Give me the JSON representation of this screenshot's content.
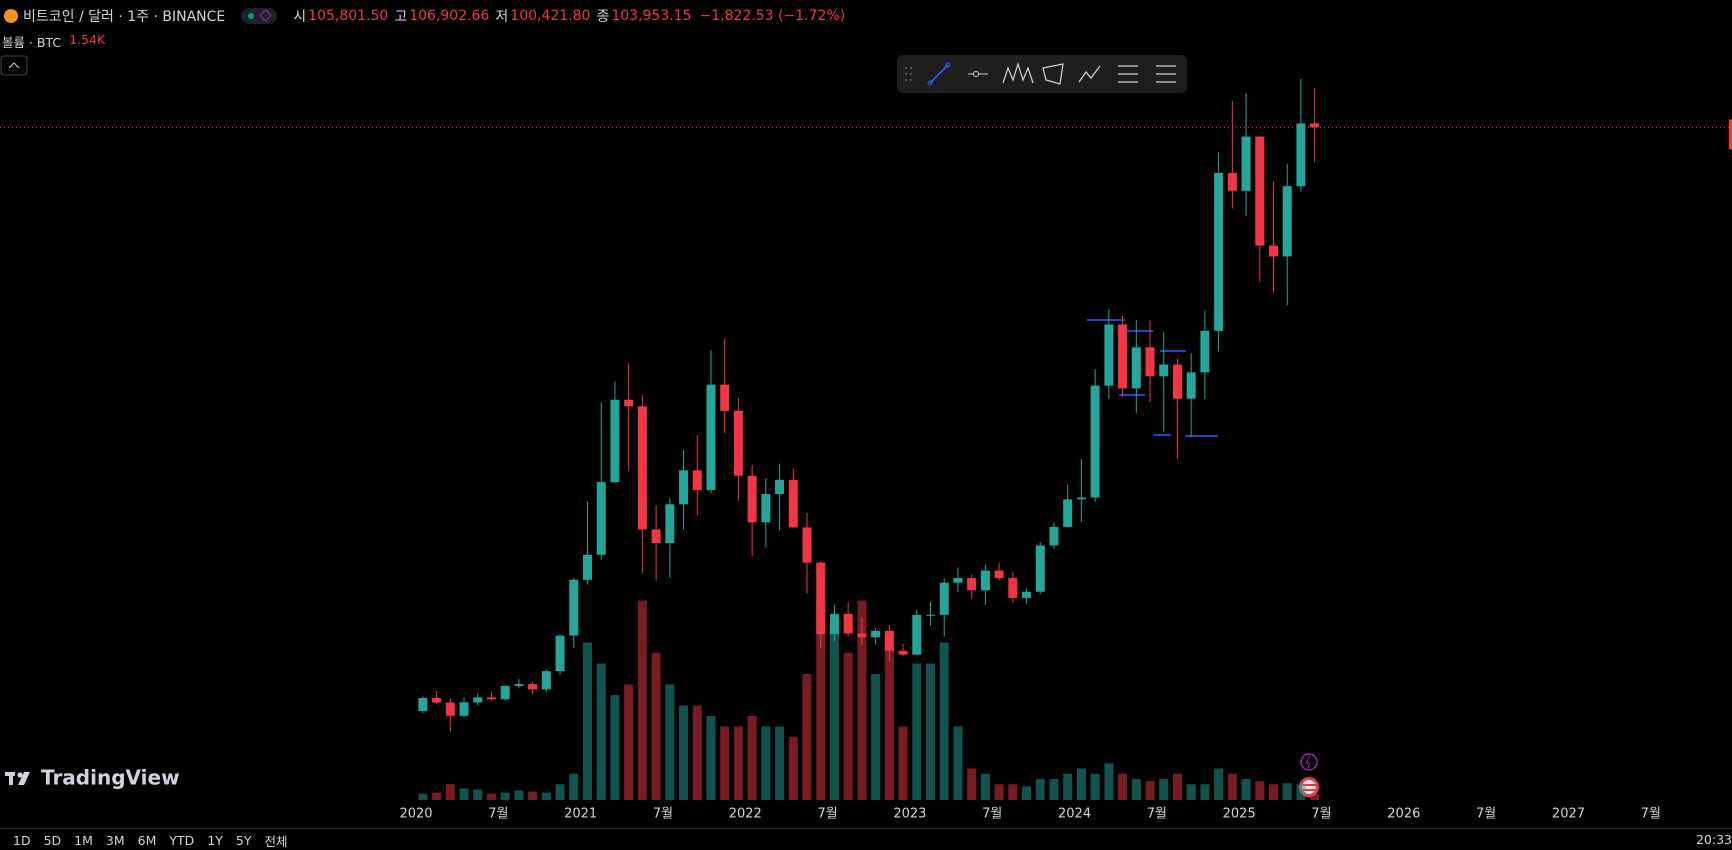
{
  "header": {
    "symbol": "비트코인 / 달러 · 1주 · BINANCE",
    "open_label": "시",
    "open": "105,801.50",
    "high_label": "고",
    "high": "106,902.66",
    "low_label": "저",
    "low": "100,421.80",
    "close_label": "종",
    "close": "103,953.15",
    "change": "−1,822.53 (−1.72%)",
    "volume_title": "볼륨 · BTC",
    "volume": "1.54K"
  },
  "brand": "TradingView",
  "timeframes": [
    "1D",
    "5D",
    "1M",
    "3M",
    "6M",
    "YTD",
    "1Y",
    "5Y",
    "전체"
  ],
  "clock": "20:33",
  "chart_data": {
    "type": "candlestick",
    "up_color": "#26a69a",
    "down_color": "#f23645",
    "x": [
      "2020-01",
      "2020-02",
      "2020-03",
      "2020-04",
      "2020-05",
      "2020-06",
      "2020-07",
      "2020-08",
      "2020-09",
      "2020-10",
      "2020-11",
      "2020-12",
      "2021-01",
      "2021-02",
      "2021-03",
      "2021-04",
      "2021-05",
      "2021-06",
      "2021-07",
      "2021-08",
      "2021-09",
      "2021-10",
      "2021-11",
      "2021-12",
      "2022-01",
      "2022-02",
      "2022-03",
      "2022-04",
      "2022-05",
      "2022-06",
      "2022-07",
      "2022-08",
      "2022-09",
      "2022-10",
      "2022-11",
      "2022-12",
      "2023-01",
      "2023-02",
      "2023-03",
      "2023-04",
      "2023-05",
      "2023-06",
      "2023-07",
      "2023-08",
      "2023-09",
      "2023-10",
      "2023-11",
      "2023-12",
      "2024-01",
      "2024-02",
      "2024-03",
      "2024-04",
      "2024-05",
      "2024-06",
      "2024-07",
      "2024-08",
      "2024-09",
      "2024-10",
      "2024-11",
      "2024-12",
      "2025-01",
      "2025-02",
      "2025-03",
      "2025-04",
      "2025-05",
      "2025-06"
    ],
    "open": [
      7200,
      9350,
      8600,
      6400,
      8630,
      9450,
      9140,
      11350,
      11650,
      10780,
      13800,
      19700,
      28950,
      33100,
      45140,
      58800,
      57700,
      37300,
      35040,
      41460,
      47100,
      43820,
      61300,
      56950,
      46200,
      38480,
      43160,
      45510,
      37630,
      31800,
      19940,
      23300,
      20050,
      19420,
      20490,
      17160,
      16540,
      23130,
      23140,
      28470,
      29230,
      27210,
      30470,
      29230,
      25940,
      26960,
      34640,
      37720,
      42280,
      42580,
      61130,
      71280,
      60670,
      67490,
      62680,
      64630,
      58970,
      63330,
      70220,
      96400,
      93430,
      102430,
      84350,
      82550,
      94200,
      104600
    ],
    "high": [
      9600,
      10500,
      9200,
      9450,
      10080,
      10380,
      11450,
      12480,
      12060,
      14100,
      19900,
      29300,
      41950,
      58350,
      61800,
      64850,
      59600,
      41300,
      42450,
      50500,
      52900,
      67000,
      69000,
      59050,
      47990,
      45820,
      48190,
      47440,
      40020,
      31980,
      24670,
      25200,
      22800,
      20990,
      21450,
      18390,
      23960,
      25250,
      29190,
      31000,
      29820,
      31430,
      31800,
      30200,
      27480,
      35200,
      38450,
      44700,
      48970,
      63900,
      73800,
      72780,
      71980,
      71950,
      70000,
      65600,
      66500,
      73600,
      99800,
      108350,
      109600,
      102500,
      95000,
      97900,
      111980,
      110500
    ],
    "low": [
      6850,
      8450,
      3800,
      6150,
      8100,
      8830,
      8900,
      10950,
      9880,
      10370,
      13200,
      17600,
      28130,
      32300,
      45000,
      47000,
      30000,
      28800,
      29300,
      37300,
      39600,
      43300,
      53250,
      42000,
      32900,
      34300,
      37150,
      37580,
      26700,
      17600,
      18780,
      19520,
      18150,
      18190,
      15480,
      16250,
      16500,
      21350,
      19550,
      26940,
      25810,
      24800,
      28860,
      25170,
      24900,
      26560,
      34100,
      37620,
      38550,
      41880,
      59000,
      59200,
      56550,
      58400,
      53500,
      49000,
      52550,
      58900,
      66800,
      90500,
      89250,
      78250,
      76600,
      74500,
      93350,
      98200
    ],
    "close": [
      9350,
      8600,
      6400,
      8630,
      9450,
      9140,
      11350,
      11650,
      10780,
      13800,
      19700,
      28950,
      33100,
      45140,
      58800,
      57700,
      37300,
      35040,
      41460,
      47100,
      43820,
      61300,
      56950,
      46200,
      38480,
      43160,
      45510,
      37630,
      31800,
      19940,
      23300,
      20050,
      19420,
      20490,
      17160,
      16540,
      23130,
      23140,
      28470,
      29230,
      27210,
      30470,
      29230,
      25940,
      26960,
      34640,
      37720,
      42280,
      42580,
      61130,
      71280,
      60670,
      67490,
      62680,
      64630,
      58970,
      63330,
      70220,
      96400,
      93430,
      102430,
      84350,
      82550,
      94200,
      104600,
      103950
    ],
    "volume": [
      60000,
      70000,
      150000,
      110000,
      100000,
      60000,
      70000,
      90000,
      80000,
      70000,
      150000,
      250000,
      1500000,
      1300000,
      1000000,
      1100000,
      1900000,
      1400000,
      1100000,
      900000,
      900000,
      800000,
      700000,
      700000,
      800000,
      700000,
      700000,
      600000,
      1200000,
      1900000,
      1700000,
      1400000,
      1900000,
      1200000,
      1600000,
      700000,
      1300000,
      1300000,
      1500000,
      700000,
      300000,
      250000,
      150000,
      150000,
      130000,
      200000,
      200000,
      250000,
      300000,
      250000,
      350000,
      250000,
      200000,
      180000,
      200000,
      250000,
      150000,
      150000,
      300000,
      250000,
      200000,
      180000,
      150000,
      160000,
      150000,
      60000
    ],
    "ylim": [
      0,
      125000
    ],
    "volume_ylim": [
      0,
      2000000
    ],
    "xticks": [
      {
        "value": "2020-01",
        "label": "2020"
      },
      {
        "value": "2020-07",
        "label": "7월"
      },
      {
        "value": "2021-01",
        "label": "2021"
      },
      {
        "value": "2021-07",
        "label": "7월"
      },
      {
        "value": "2022-01",
        "label": "2022"
      },
      {
        "value": "2022-07",
        "label": "7월"
      },
      {
        "value": "2023-01",
        "label": "2023"
      },
      {
        "value": "2023-07",
        "label": "7월"
      },
      {
        "value": "2024-01",
        "label": "2024"
      },
      {
        "value": "2024-07",
        "label": "7월"
      },
      {
        "value": "2025-01",
        "label": "2025"
      },
      {
        "value": "2025-07",
        "label": "7월"
      },
      {
        "value": "2026-01",
        "label": "2026"
      },
      {
        "value": "2026-07",
        "label": "7월"
      },
      {
        "value": "2027-01",
        "label": "2027"
      },
      {
        "value": "2027-07",
        "label": "7월"
      }
    ]
  }
}
